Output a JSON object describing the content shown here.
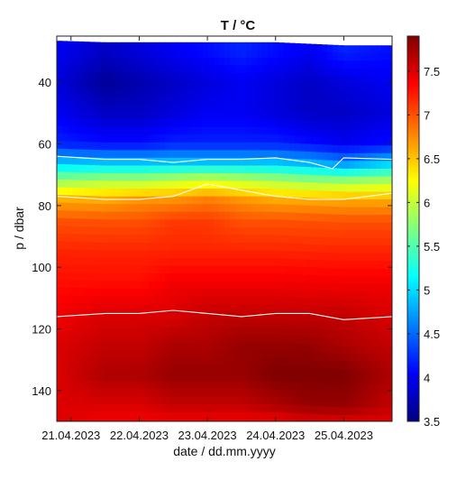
{
  "chart_data": {
    "type": "heatmap",
    "title": "T / °C",
    "xlabel": "date / dd.mm.yyyy",
    "ylabel": "p / dbar",
    "x_tick_labels": [
      "21.04.2023",
      "22.04.2023",
      "23.04.2023",
      "24.04.2023",
      "25.04.2023"
    ],
    "x_ticks": [
      "2023-04-21",
      "2023-04-22",
      "2023-04-23",
      "2023-04-24",
      "2023-04-25"
    ],
    "xlim": [
      "2023-04-20T19:00",
      "2023-04-25T17:00"
    ],
    "y_ticks": [
      40,
      60,
      80,
      100,
      120,
      140
    ],
    "ylim": [
      150,
      25
    ],
    "y_reversed": true,
    "colorbar": {
      "colormap": "jet",
      "range": [
        3.5,
        7.9
      ],
      "ticks": [
        3.5,
        4,
        4.5,
        5,
        5.5,
        6,
        6.5,
        7,
        7.5
      ]
    },
    "profile_columns": [
      "date",
      "top_of_data_dbar",
      "T_at_30_dbar",
      "T_at_40_dbar",
      "T_at_50_dbar",
      "T_at_60_dbar",
      "T_at_66_dbar",
      "T_at_72_dbar",
      "T_at_78_dbar",
      "T_at_85_dbar",
      "T_at_95_dbar",
      "T_at_105_dbar",
      "T_at_115_dbar",
      "T_at_125_dbar",
      "T_at_135_dbar",
      "T_at_145_dbar",
      "T_at_150_dbar"
    ],
    "profiles": [
      [
        "2023-04-20T19:00",
        26.5,
        4.0,
        3.9,
        4.0,
        4.2,
        4.9,
        5.8,
        6.6,
        7.0,
        7.2,
        7.3,
        7.4,
        7.5,
        7.5,
        7.5,
        7.5
      ],
      [
        "2023-04-21T12:00",
        27.0,
        3.8,
        3.6,
        3.8,
        4.1,
        4.9,
        5.9,
        6.6,
        7.0,
        7.2,
        7.3,
        7.5,
        7.6,
        7.7,
        7.5,
        7.4
      ],
      [
        "2023-04-22T00:00",
        27.0,
        3.9,
        3.7,
        3.8,
        4.1,
        4.9,
        5.9,
        6.7,
        7.0,
        7.2,
        7.3,
        7.5,
        7.6,
        7.7,
        7.5,
        7.4
      ],
      [
        "2023-04-22T12:00",
        27.0,
        4.0,
        3.8,
        3.9,
        4.2,
        4.9,
        6.0,
        6.7,
        7.1,
        7.2,
        7.4,
        7.5,
        7.7,
        7.8,
        7.6,
        7.4
      ],
      [
        "2023-04-23T00:00",
        27.0,
        4.1,
        3.9,
        4.0,
        4.2,
        4.9,
        6.1,
        6.8,
        7.1,
        7.2,
        7.4,
        7.6,
        7.7,
        7.8,
        7.6,
        7.4
      ],
      [
        "2023-04-23T12:00",
        27.0,
        4.2,
        4.0,
        4.0,
        4.2,
        4.9,
        6.0,
        6.7,
        7.0,
        7.2,
        7.4,
        7.6,
        7.8,
        7.8,
        7.6,
        7.4
      ],
      [
        "2023-04-24T00:00",
        27.0,
        4.1,
        3.9,
        3.9,
        4.2,
        4.9,
        5.9,
        6.6,
        7.0,
        7.2,
        7.4,
        7.6,
        7.8,
        7.9,
        7.7,
        7.4
      ],
      [
        "2023-04-24T12:00",
        27.5,
        4.0,
        3.8,
        3.8,
        4.1,
        4.8,
        5.8,
        6.6,
        7.0,
        7.2,
        7.4,
        7.6,
        7.8,
        7.9,
        7.8,
        7.5
      ],
      [
        "2023-04-25T00:00",
        28.0,
        4.2,
        3.9,
        3.8,
        4.0,
        4.6,
        5.8,
        6.6,
        7.0,
        7.2,
        7.4,
        7.6,
        7.7,
        7.9,
        7.8,
        7.5
      ],
      [
        "2023-04-25T17:00",
        28.0,
        4.1,
        4.0,
        3.9,
        4.1,
        4.9,
        5.9,
        6.6,
        7.0,
        7.2,
        7.4,
        7.5,
        7.6,
        7.7,
        7.6,
        7.5
      ]
    ],
    "contours": [
      {
        "level": 5.0,
        "color": "#ffffff",
        "points": [
          [
            "2023-04-20T19:00",
            64
          ],
          [
            "2023-04-21T12:00",
            65
          ],
          [
            "2023-04-22T00:00",
            65
          ],
          [
            "2023-04-22T12:00",
            66
          ],
          [
            "2023-04-23T00:00",
            65
          ],
          [
            "2023-04-23T12:00",
            65
          ],
          [
            "2023-04-24T00:00",
            64.5
          ],
          [
            "2023-04-24T12:00",
            66
          ],
          [
            "2023-04-24T20:00",
            68
          ],
          [
            "2023-04-25T00:00",
            64.5
          ],
          [
            "2023-04-25T17:00",
            65
          ]
        ]
      },
      {
        "level": 6.0,
        "color": "#ffffff",
        "points": [
          [
            "2023-04-20T19:00",
            77
          ],
          [
            "2023-04-21T12:00",
            78
          ],
          [
            "2023-04-22T00:00",
            78
          ],
          [
            "2023-04-22T12:00",
            77
          ],
          [
            "2023-04-23T00:00",
            73
          ],
          [
            "2023-04-23T12:00",
            75
          ],
          [
            "2023-04-24T00:00",
            77
          ],
          [
            "2023-04-24T12:00",
            78
          ],
          [
            "2023-04-25T00:00",
            78
          ],
          [
            "2023-04-25T17:00",
            76
          ]
        ]
      },
      {
        "level": 7.5,
        "color": "#ffffff",
        "points": [
          [
            "2023-04-20T19:00",
            116
          ],
          [
            "2023-04-21T12:00",
            115
          ],
          [
            "2023-04-22T00:00",
            115
          ],
          [
            "2023-04-22T12:00",
            114
          ],
          [
            "2023-04-23T00:00",
            115
          ],
          [
            "2023-04-23T12:00",
            116
          ],
          [
            "2023-04-24T00:00",
            115
          ],
          [
            "2023-04-24T12:00",
            115
          ],
          [
            "2023-04-25T00:00",
            117
          ],
          [
            "2023-04-25T17:00",
            116
          ]
        ]
      }
    ],
    "grid": false,
    "legend": "none"
  }
}
